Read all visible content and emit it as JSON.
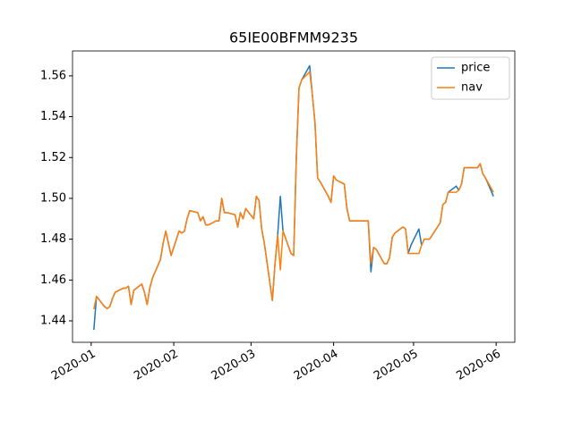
{
  "chart_data": {
    "type": "line",
    "title": "65IE00BFMM9235",
    "x": [
      18263,
      18264,
      18267,
      18268,
      18269,
      18270,
      18271,
      18274,
      18275,
      18276,
      18277,
      18278,
      18281,
      18282,
      18283,
      18284,
      18285,
      18288,
      18289,
      18290,
      18291,
      18292,
      18295,
      18296,
      18297,
      18298,
      18299,
      18302,
      18303,
      18304,
      18305,
      18306,
      18309,
      18310,
      18311,
      18312,
      18313,
      18316,
      18317,
      18318,
      18319,
      18320,
      18323,
      18324,
      18325,
      18326,
      18327,
      18330,
      18331,
      18332,
      18333,
      18334,
      18337,
      18338,
      18339,
      18340,
      18341,
      18344,
      18345,
      18346,
      18347,
      18348,
      18351,
      18352,
      18353,
      18354,
      18357,
      18358,
      18359,
      18360,
      18365,
      18366,
      18367,
      18368,
      18369,
      18372,
      18373,
      18374,
      18375,
      18376,
      18379,
      18380,
      18381,
      18382,
      18385,
      18386,
      18387,
      18388,
      18389,
      18393,
      18394,
      18395,
      18396,
      18399,
      18400,
      18401,
      18402,
      18403,
      18407,
      18408,
      18409,
      18410,
      18413
    ],
    "series": [
      {
        "name": "price",
        "color": "#1f77b4",
        "values": [
          1.4356,
          1.452,
          1.447,
          1.446,
          1.447,
          1.451,
          1.454,
          1.456,
          1.456,
          1.457,
          1.448,
          1.455,
          1.458,
          1.454,
          1.448,
          1.456,
          1.461,
          1.47,
          1.478,
          1.484,
          1.478,
          1.472,
          1.484,
          1.483,
          1.484,
          1.49,
          1.494,
          1.493,
          1.489,
          1.491,
          1.487,
          1.487,
          1.489,
          1.489,
          1.5,
          1.493,
          1.493,
          1.492,
          1.486,
          1.493,
          1.49,
          1.495,
          1.49,
          1.501,
          1.499,
          1.485,
          1.478,
          1.45,
          1.468,
          1.482,
          1.501,
          1.484,
          1.473,
          1.472,
          1.52,
          1.554,
          1.558,
          1.565,
          1.551,
          1.537,
          1.51,
          1.508,
          1.501,
          1.498,
          1.511,
          1.509,
          1.507,
          1.495,
          1.489,
          1.489,
          1.489,
          1.489,
          1.464,
          1.476,
          1.475,
          1.468,
          1.468,
          1.471,
          1.481,
          1.483,
          1.486,
          1.485,
          1.473,
          1.477,
          1.485,
          1.477,
          1.48,
          1.48,
          1.48,
          1.488,
          1.497,
          1.498,
          1.503,
          1.506,
          1.504,
          1.507,
          1.515,
          1.515,
          1.515,
          1.517,
          1.512,
          1.51,
          1.501
        ]
      },
      {
        "name": "nav",
        "color": "#ff7f0e",
        "values": [
          1.4457,
          1.452,
          1.447,
          1.446,
          1.447,
          1.451,
          1.454,
          1.456,
          1.456,
          1.457,
          1.448,
          1.455,
          1.458,
          1.454,
          1.448,
          1.456,
          1.461,
          1.47,
          1.478,
          1.484,
          1.478,
          1.472,
          1.484,
          1.483,
          1.484,
          1.49,
          1.494,
          1.493,
          1.489,
          1.491,
          1.487,
          1.487,
          1.489,
          1.489,
          1.5,
          1.493,
          1.493,
          1.492,
          1.486,
          1.493,
          1.49,
          1.495,
          1.49,
          1.501,
          1.499,
          1.485,
          1.478,
          1.45,
          1.468,
          1.482,
          1.465,
          1.484,
          1.473,
          1.472,
          1.52,
          1.554,
          1.558,
          1.562,
          1.551,
          1.537,
          1.51,
          1.508,
          1.501,
          1.498,
          1.511,
          1.509,
          1.507,
          1.495,
          1.489,
          1.489,
          1.489,
          1.489,
          1.468,
          1.476,
          1.475,
          1.468,
          1.468,
          1.471,
          1.481,
          1.483,
          1.486,
          1.485,
          1.473,
          1.473,
          1.473,
          1.477,
          1.48,
          1.48,
          1.48,
          1.488,
          1.497,
          1.498,
          1.503,
          1.503,
          1.504,
          1.507,
          1.515,
          1.515,
          1.515,
          1.517,
          1.512,
          1.51,
          1.503
        ]
      }
    ],
    "xlim": [
      18255,
      18421
    ],
    "xticks": [
      {
        "value": 18262,
        "label": "2020-01"
      },
      {
        "value": 18293,
        "label": "2020-02"
      },
      {
        "value": 18322,
        "label": "2020-03"
      },
      {
        "value": 18353,
        "label": "2020-04"
      },
      {
        "value": 18383,
        "label": "2020-05"
      },
      {
        "value": 18414,
        "label": "2020-06"
      }
    ],
    "ylim": [
      1.4295,
      1.5722
    ],
    "yticks": [
      1.44,
      1.46,
      1.48,
      {
        "value": 1.5,
        "label": "1.50"
      },
      1.52,
      1.54,
      1.56
    ],
    "legend": "upper right"
  }
}
